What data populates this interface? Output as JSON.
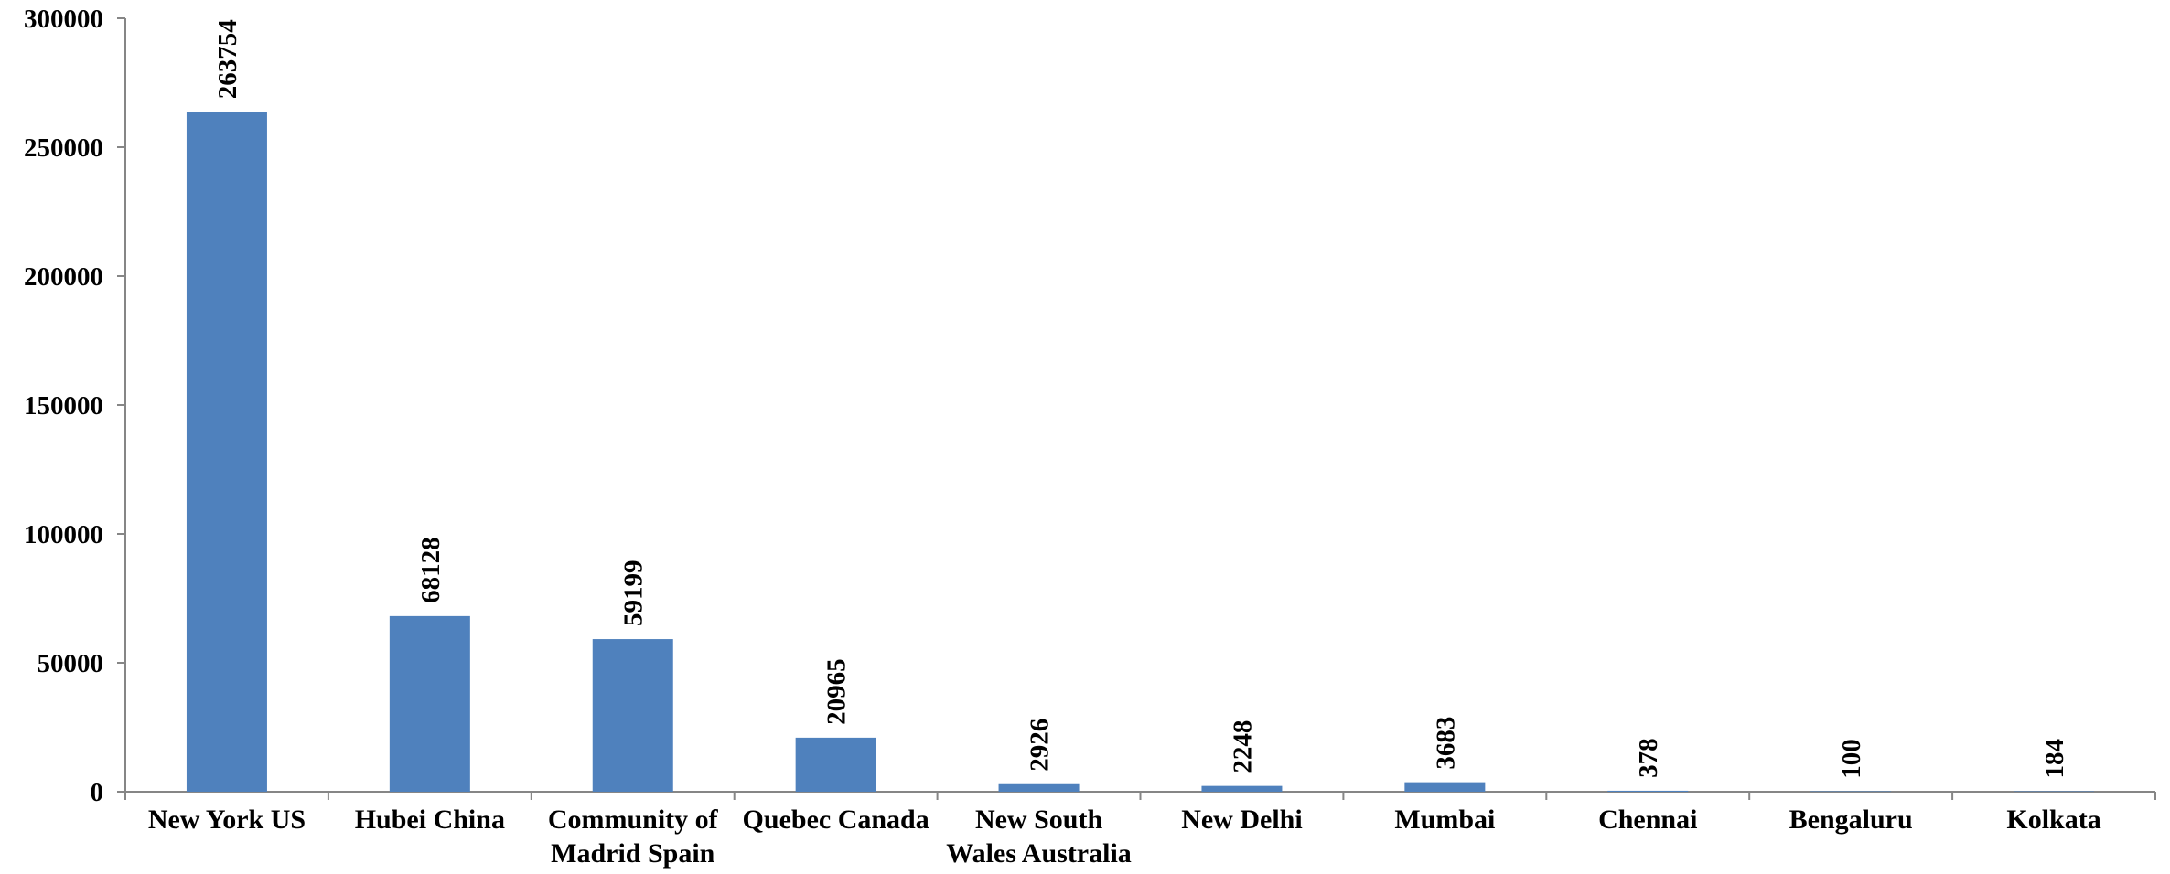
{
  "chart_data": {
    "type": "bar",
    "title": "",
    "xlabel": "",
    "ylabel": "",
    "categories": [
      "New York US",
      "Hubei China",
      "Community of Madrid Spain",
      "Quebec Canada",
      "New South Wales Australia",
      "New Delhi",
      "Mumbai",
      "Chennai",
      "Bengaluru",
      "Kolkata"
    ],
    "category_lines": [
      [
        "New York US"
      ],
      [
        "Hubei China"
      ],
      [
        "Community of",
        "Madrid Spain"
      ],
      [
        "Quebec Canada"
      ],
      [
        "New South",
        "Wales Australia"
      ],
      [
        "New Delhi"
      ],
      [
        "Mumbai"
      ],
      [
        "Chennai"
      ],
      [
        "Bengaluru"
      ],
      [
        "Kolkata"
      ]
    ],
    "values": [
      263754,
      68128,
      59199,
      20965,
      2926,
      2248,
      3683,
      378,
      100,
      184
    ],
    "ylim": [
      0,
      300000
    ],
    "yticks": [
      0,
      50000,
      100000,
      150000,
      200000,
      250000,
      300000
    ],
    "bar_color": "#4F81BD",
    "data_labels": "rotated-vertical",
    "grid": false,
    "legend": "none"
  }
}
